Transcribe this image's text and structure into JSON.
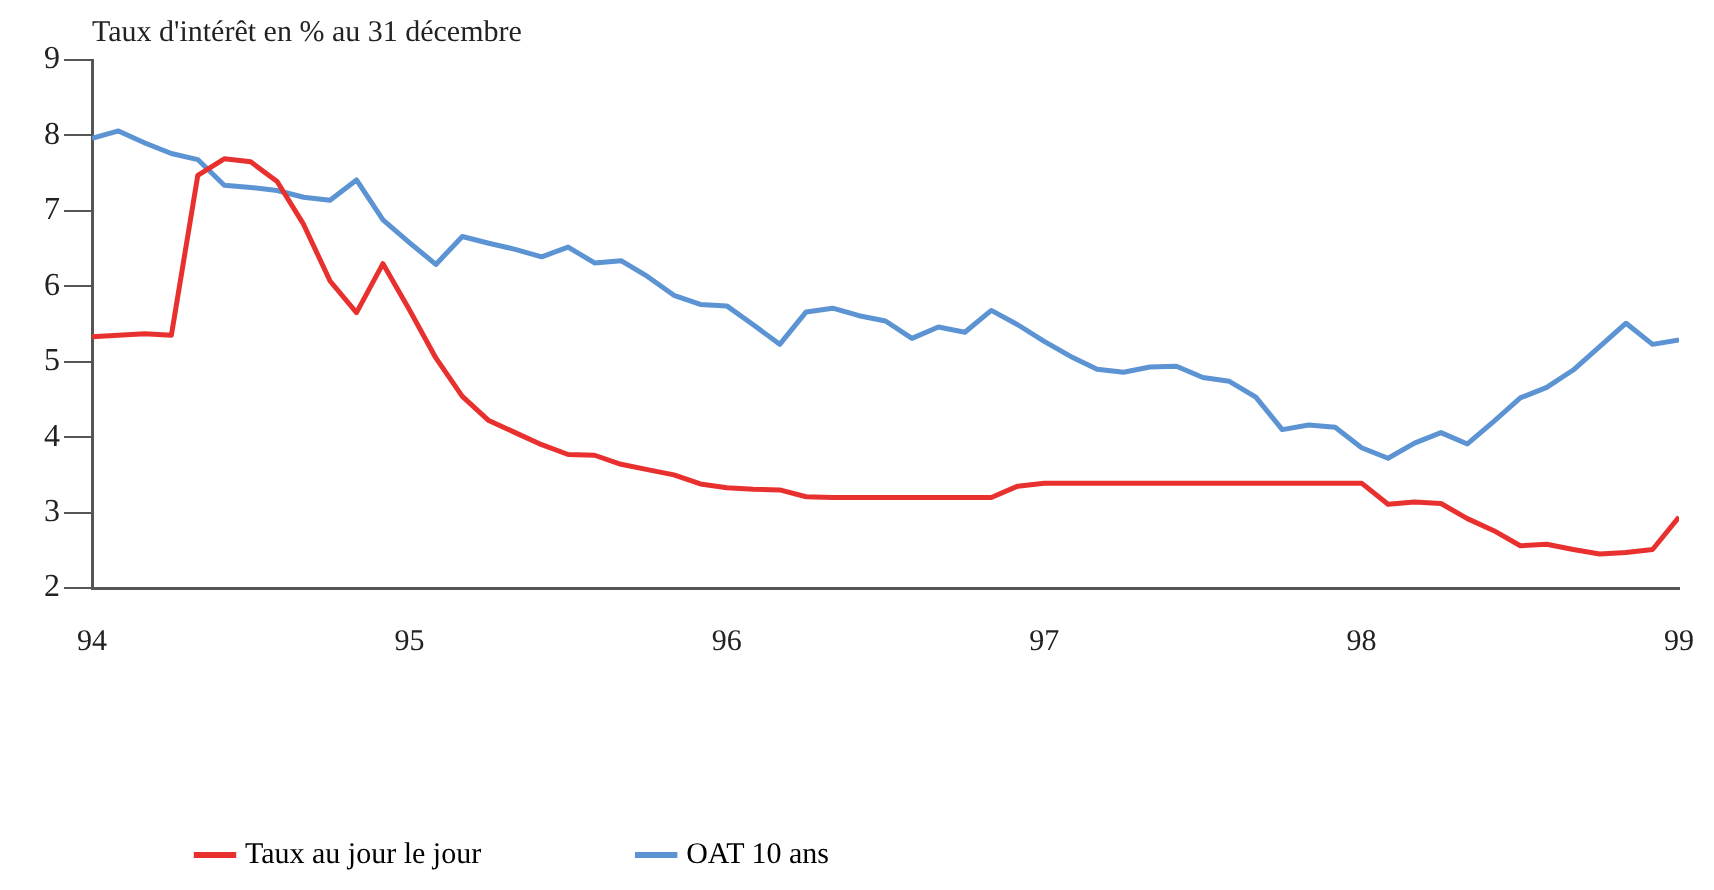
{
  "chart_data": {
    "type": "line",
    "ylabel": "Taux d'intérêt en % au 31 décembre",
    "x": [
      94,
      94.0833,
      94.1667,
      94.25,
      94.3333,
      94.4167,
      94.5,
      94.5833,
      94.6667,
      94.75,
      94.8333,
      94.9167,
      95,
      95.0833,
      95.1667,
      95.25,
      95.3333,
      95.4167,
      95.5,
      95.5833,
      95.6667,
      95.75,
      95.8333,
      95.9167,
      96,
      96.0833,
      96.1667,
      96.25,
      96.3333,
      96.4167,
      96.5,
      96.5833,
      96.6667,
      96.75,
      96.8333,
      96.9167,
      97,
      97.0833,
      97.1667,
      97.25,
      97.3333,
      97.4167,
      97.5,
      97.5833,
      97.6667,
      97.75,
      97.8333,
      97.9167,
      98,
      98.0833,
      98.1667,
      98.25,
      98.3333,
      98.4167,
      98.5,
      98.5833,
      98.6667,
      98.75,
      98.8333,
      98.9167,
      99
    ],
    "series": [
      {
        "name": "Taux au jour le jour",
        "color": "#e8312f",
        "values": [
          5.33,
          5.35,
          5.37,
          5.35,
          7.47,
          7.69,
          7.65,
          7.39,
          6.82,
          6.07,
          5.65,
          6.3,
          5.69,
          5.05,
          4.54,
          4.22,
          4.06,
          3.9,
          3.77,
          3.76,
          3.64,
          3.57,
          3.5,
          3.38,
          3.33,
          3.31,
          3.3,
          3.21,
          3.2,
          3.2,
          3.2,
          3.2,
          3.2,
          3.2,
          3.2,
          3.35,
          3.39,
          3.39,
          3.39,
          3.39,
          3.39,
          3.39,
          3.39,
          3.39,
          3.39,
          3.39,
          3.39,
          3.39,
          3.39,
          3.11,
          3.14,
          3.12,
          2.92,
          2.76,
          2.56,
          2.58,
          2.51,
          2.45,
          2.47,
          2.51,
          2.94
        ]
      },
      {
        "name": "OAT 10 ans",
        "color": "#5b93d3",
        "values": [
          7.96,
          8.06,
          7.9,
          7.76,
          7.68,
          7.34,
          7.31,
          7.27,
          7.18,
          7.14,
          7.41,
          6.88,
          6.58,
          6.29,
          6.66,
          6.57,
          6.49,
          6.39,
          6.52,
          6.31,
          6.34,
          6.13,
          5.88,
          5.76,
          5.74,
          5.49,
          5.23,
          5.66,
          5.71,
          5.61,
          5.54,
          5.31,
          5.46,
          5.39,
          5.68,
          5.49,
          5.27,
          5.07,
          4.9,
          4.86,
          4.93,
          4.94,
          4.79,
          4.74,
          4.53,
          4.1,
          4.16,
          4.13,
          3.86,
          3.72,
          3.92,
          4.06,
          3.91,
          4.21,
          4.52,
          4.66,
          4.89,
          5.2,
          5.51,
          5.23,
          5.29
        ]
      }
    ],
    "xlim": [
      94,
      99
    ],
    "xticks": [
      94,
      95,
      96,
      97,
      98,
      99
    ],
    "ylim": [
      2,
      9
    ],
    "yticks": [
      2,
      3,
      4,
      5,
      6,
      7,
      8,
      9
    ],
    "grid": false,
    "legend": "bottom left",
    "marker": "none",
    "line_style": "solid"
  }
}
